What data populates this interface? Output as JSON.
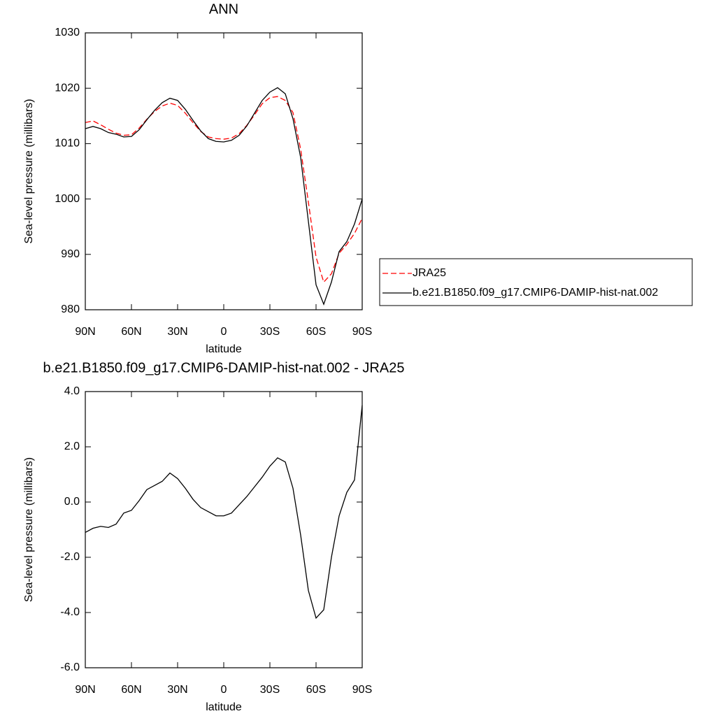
{
  "chart_data": [
    {
      "type": "line",
      "title": "ANN",
      "x_label": "latitude",
      "y_label": "Sea-level pressure (millibars)",
      "x": [
        90,
        85,
        80,
        75,
        70,
        65,
        60,
        55,
        50,
        45,
        40,
        35,
        30,
        25,
        20,
        15,
        10,
        5,
        0,
        -5,
        -10,
        -15,
        -20,
        -25,
        -30,
        -35,
        -40,
        -45,
        -50,
        -55,
        -60,
        -65,
        -70,
        -75,
        -80,
        -85,
        -90
      ],
      "xlim": [
        90,
        -90
      ],
      "xticks": [
        {
          "value": 90,
          "label": "90N"
        },
        {
          "value": 60,
          "label": "60N"
        },
        {
          "value": 30,
          "label": "30N"
        },
        0,
        {
          "value": -30,
          "label": "30S"
        },
        {
          "value": -60,
          "label": "60S"
        },
        {
          "value": -90,
          "label": "90S"
        }
      ],
      "ylim": [
        980,
        1030
      ],
      "yticks": [
        980,
        990,
        1000,
        1010,
        1020,
        1030
      ],
      "legend": "right",
      "series": [
        {
          "name": "JRA25",
          "color": "#ff0000",
          "line_style": "dashed",
          "values": [
            1013.8,
            1014.1,
            1013.4,
            1012.6,
            1011.9,
            1011.5,
            1011.6,
            1012.8,
            1014.4,
            1015.8,
            1016.8,
            1017.3,
            1016.9,
            1015.5,
            1013.8,
            1012.2,
            1011.2,
            1010.9,
            1010.8,
            1011.0,
            1011.8,
            1013.3,
            1015.2,
            1017.2,
            1018.3,
            1018.5,
            1017.8,
            1015.6,
            1009.0,
            999.5,
            989.5,
            985.0,
            986.5,
            990.2,
            991.8,
            993.8,
            996.5
          ]
        },
        {
          "name": "b.e21.B1850.f09_g17.CMIP6-DAMIP-hist-nat.002",
          "color": "#000000",
          "line_style": "solid",
          "values": [
            1012.7,
            1013.1,
            1012.7,
            1012.0,
            1011.7,
            1011.2,
            1011.3,
            1012.5,
            1014.3,
            1016.0,
            1017.4,
            1018.2,
            1017.8,
            1016.2,
            1014.2,
            1012.3,
            1010.9,
            1010.4,
            1010.3,
            1010.6,
            1011.5,
            1013.2,
            1015.5,
            1017.8,
            1019.3,
            1020.1,
            1019.0,
            1014.5,
            1007.5,
            996.0,
            984.5,
            981.0,
            985.0,
            990.5,
            992.3,
            995.5,
            1000.0
          ]
        }
      ]
    },
    {
      "type": "line",
      "title": "b.e21.B1850.f09_g17.CMIP6-DAMIP-hist-nat.002 - JRA25",
      "x_label": "latitude",
      "y_label": "Sea-level pressure (millibars)",
      "x": [
        90,
        85,
        80,
        75,
        70,
        65,
        60,
        55,
        50,
        45,
        40,
        35,
        30,
        25,
        20,
        15,
        10,
        5,
        0,
        -5,
        -10,
        -15,
        -20,
        -25,
        -30,
        -35,
        -40,
        -45,
        -50,
        -55,
        -60,
        -65,
        -70,
        -75,
        -80,
        -85,
        -90
      ],
      "xlim": [
        90,
        -90
      ],
      "xticks": [
        {
          "value": 90,
          "label": "90N"
        },
        {
          "value": 60,
          "label": "60N"
        },
        {
          "value": 30,
          "label": "30N"
        },
        0,
        {
          "value": -30,
          "label": "30S"
        },
        {
          "value": -60,
          "label": "60S"
        },
        {
          "value": -90,
          "label": "90S"
        }
      ],
      "ylim": [
        -6,
        4
      ],
      "yticks": [
        {
          "value": -6,
          "label": "-6.0"
        },
        {
          "value": -4,
          "label": "-4.0"
        },
        {
          "value": -2,
          "label": "-2.0"
        },
        {
          "value": 0,
          "label": "0.0"
        },
        {
          "value": 2,
          "label": "2.0"
        },
        {
          "value": 4,
          "label": "4.0"
        }
      ],
      "series": [
        {
          "color": "#000000",
          "line_style": "solid",
          "values": [
            -1.1,
            -0.95,
            -0.88,
            -0.92,
            -0.8,
            -0.4,
            -0.3,
            0.05,
            0.45,
            0.6,
            0.75,
            1.05,
            0.85,
            0.5,
            0.1,
            -0.2,
            -0.35,
            -0.5,
            -0.5,
            -0.4,
            -0.1,
            0.2,
            0.55,
            0.9,
            1.3,
            1.6,
            1.45,
            0.5,
            -1.2,
            -3.2,
            -4.2,
            -3.9,
            -2.0,
            -0.5,
            0.35,
            0.8,
            3.5
          ]
        }
      ]
    }
  ]
}
